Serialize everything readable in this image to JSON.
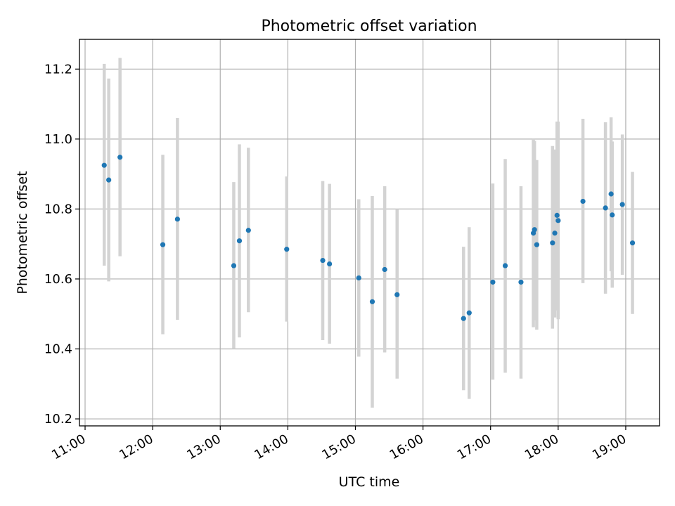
{
  "chart_data": {
    "type": "scatter",
    "title": "Photometric offset variation",
    "xlabel": "UTC time",
    "ylabel": "Photometric offset",
    "xlim": [
      "10:55",
      "19:30"
    ],
    "ylim": [
      10.18,
      11.285
    ],
    "grid": true,
    "x_tick_labels": [
      "11:00",
      "12:00",
      "13:00",
      "14:00",
      "15:00",
      "16:00",
      "17:00",
      "18:00",
      "19:00"
    ],
    "x_tick_rotation": "30 degrees, right-aligned",
    "y_ticks": [
      10.2,
      10.4,
      10.6,
      10.8,
      11.0,
      11.2
    ],
    "y_tick_labels": [
      "10.2",
      "10.4",
      "10.6",
      "10.8",
      "11.0",
      "11.2"
    ],
    "colors": {
      "point": "#1f77b4",
      "errorbar": "#d3d3d3",
      "grid": "#b0b0b0",
      "axes": "#000000"
    },
    "points": [
      {
        "x": "11:17",
        "y": 10.925,
        "low": 10.638,
        "high": 11.215
      },
      {
        "x": "11:21",
        "y": 10.883,
        "low": 10.593,
        "high": 11.173
      },
      {
        "x": "11:31",
        "y": 10.948,
        "low": 10.665,
        "high": 11.232
      },
      {
        "x": "12:09",
        "y": 10.698,
        "low": 10.442,
        "high": 10.955
      },
      {
        "x": "12:22",
        "y": 10.771,
        "low": 10.483,
        "high": 11.06
      },
      {
        "x": "13:12",
        "y": 10.638,
        "low": 10.4,
        "high": 10.877
      },
      {
        "x": "13:17",
        "y": 10.709,
        "low": 10.433,
        "high": 10.985
      },
      {
        "x": "13:25",
        "y": 10.739,
        "low": 10.505,
        "high": 10.975
      },
      {
        "x": "13:59",
        "y": 10.685,
        "low": 10.478,
        "high": 10.893
      },
      {
        "x": "14:31",
        "y": 10.653,
        "low": 10.425,
        "high": 10.88
      },
      {
        "x": "14:37",
        "y": 10.643,
        "low": 10.415,
        "high": 10.872
      },
      {
        "x": "15:03",
        "y": 10.603,
        "low": 10.378,
        "high": 10.828
      },
      {
        "x": "15:15",
        "y": 10.535,
        "low": 10.232,
        "high": 10.837
      },
      {
        "x": "15:26",
        "y": 10.627,
        "low": 10.39,
        "high": 10.865
      },
      {
        "x": "15:37",
        "y": 10.555,
        "low": 10.315,
        "high": 10.8
      },
      {
        "x": "16:36",
        "y": 10.487,
        "low": 10.282,
        "high": 10.692
      },
      {
        "x": "16:41",
        "y": 10.503,
        "low": 10.257,
        "high": 10.748
      },
      {
        "x": "17:02",
        "y": 10.591,
        "low": 10.312,
        "high": 10.873
      },
      {
        "x": "17:13",
        "y": 10.638,
        "low": 10.332,
        "high": 10.943
      },
      {
        "x": "17:27",
        "y": 10.591,
        "low": 10.315,
        "high": 10.865
      },
      {
        "x": "17:38",
        "y": 10.731,
        "low": 10.462,
        "high": 11.0
      },
      {
        "x": "17:39",
        "y": 10.741,
        "low": 10.482,
        "high": 10.995
      },
      {
        "x": "17:41",
        "y": 10.698,
        "low": 10.455,
        "high": 10.94
      },
      {
        "x": "17:55",
        "y": 10.703,
        "low": 10.458,
        "high": 10.98
      },
      {
        "x": "17:57",
        "y": 10.731,
        "low": 10.49,
        "high": 10.97
      },
      {
        "x": "17:59",
        "y": 10.782,
        "low": 10.51,
        "high": 11.05
      },
      {
        "x": "18:00",
        "y": 10.767,
        "low": 10.485,
        "high": 11.05
      },
      {
        "x": "18:22",
        "y": 10.822,
        "low": 10.588,
        "high": 11.058
      },
      {
        "x": "18:42",
        "y": 10.803,
        "low": 10.558,
        "high": 11.048
      },
      {
        "x": "18:47",
        "y": 10.843,
        "low": 10.622,
        "high": 11.062
      },
      {
        "x": "18:48",
        "y": 10.783,
        "low": 10.575,
        "high": 10.993
      },
      {
        "x": "18:57",
        "y": 10.813,
        "low": 10.612,
        "high": 11.013
      },
      {
        "x": "19:06",
        "y": 10.703,
        "low": 10.5,
        "high": 10.906
      }
    ]
  }
}
